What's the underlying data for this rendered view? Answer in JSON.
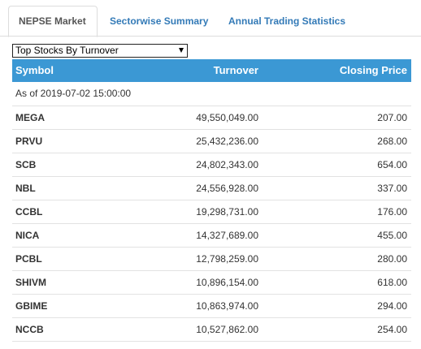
{
  "tabs": [
    {
      "label": "NEPSE Market",
      "active": true
    },
    {
      "label": "Sectorwise Summary",
      "active": false
    },
    {
      "label": "Annual Trading Statistics",
      "active": false
    }
  ],
  "filter": {
    "selected": "Top Stocks By Turnover"
  },
  "table": {
    "columns": [
      "Symbol",
      "Turnover",
      "Closing Price"
    ],
    "as_of": "As of 2019-07-02 15:00:00",
    "rows": [
      {
        "symbol": "MEGA",
        "turnover": "49,550,049.00",
        "closing_price": "207.00"
      },
      {
        "symbol": "PRVU",
        "turnover": "25,432,236.00",
        "closing_price": "268.00"
      },
      {
        "symbol": "SCB",
        "turnover": "24,802,343.00",
        "closing_price": "654.00"
      },
      {
        "symbol": "NBL",
        "turnover": "24,556,928.00",
        "closing_price": "337.00"
      },
      {
        "symbol": "CCBL",
        "turnover": "19,298,731.00",
        "closing_price": "176.00"
      },
      {
        "symbol": "NICA",
        "turnover": "14,327,689.00",
        "closing_price": "455.00"
      },
      {
        "symbol": "PCBL",
        "turnover": "12,798,259.00",
        "closing_price": "280.00"
      },
      {
        "symbol": "SHIVM",
        "turnover": "10,896,154.00",
        "closing_price": "618.00"
      },
      {
        "symbol": "GBIME",
        "turnover": "10,863,974.00",
        "closing_price": "294.00"
      },
      {
        "symbol": "NCCB",
        "turnover": "10,527,862.00",
        "closing_price": "254.00"
      }
    ]
  },
  "colors": {
    "header_bg": "#3b98d4",
    "tab_link": "#337ab7"
  }
}
